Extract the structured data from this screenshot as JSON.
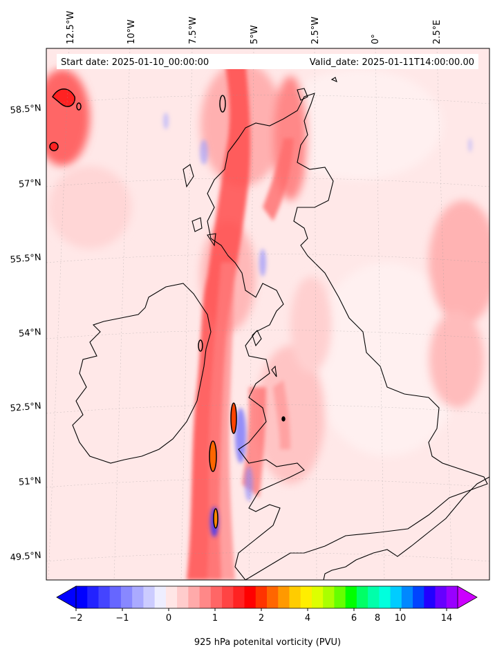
{
  "header": {
    "start_date": "Start date: 2025-01-10_00:00:00",
    "valid_date": "Valid_date: 2025-01-11T14:00:00.00"
  },
  "lon_labels": [
    "12.5°W",
    "10°W",
    "7.5°W",
    "5°W",
    "2.5°W",
    "0°",
    "2.5°E"
  ],
  "lat_labels": [
    "58.5°N",
    "57°N",
    "55.5°N",
    "54°N",
    "52.5°N",
    "51°N",
    "49.5°N"
  ],
  "colorbar": {
    "title": "925 hPa potenital vorticity (PVU)",
    "tick_labels": [
      "−2",
      "−1",
      "0",
      "1",
      "2",
      "4",
      "6",
      "8",
      "10",
      "14"
    ],
    "colors": [
      "#0000ff",
      "#2222ff",
      "#4444ff",
      "#6666ff",
      "#8888ff",
      "#aaaaff",
      "#ccccff",
      "#eeeeff",
      "#ffe6e6",
      "#ffcccc",
      "#ffaaaa",
      "#ff8888",
      "#ff6666",
      "#ff4444",
      "#ff2222",
      "#ff0000",
      "#ff3300",
      "#ff6600",
      "#ff9900",
      "#ffcc00",
      "#ffee00",
      "#ddff00",
      "#aaff00",
      "#66ff00",
      "#00ff00",
      "#00ff66",
      "#00ffaa",
      "#00ffdd",
      "#00ccff",
      "#0088ff",
      "#0044ff",
      "#2200ff",
      "#6600ff",
      "#9900ff"
    ],
    "extend_low_color": "#0000ff",
    "extend_high_color": "#cc00ff"
  },
  "colors": {
    "background": "#ffe6e6",
    "strong": "#ff3333",
    "moderate": "#ff9999",
    "coast": "#000000"
  }
}
